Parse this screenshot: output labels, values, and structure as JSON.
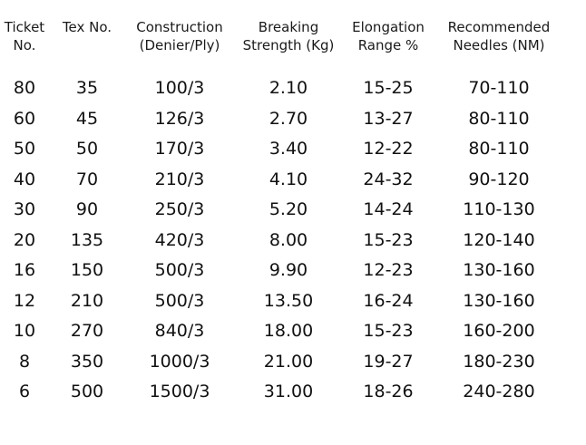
{
  "table": {
    "headers": [
      {
        "line1": "Ticket",
        "line2": "No."
      },
      {
        "line1": "Tex No.",
        "line2": ""
      },
      {
        "line1": "Construction",
        "line2": "(Denier/Ply)"
      },
      {
        "line1": "Breaking",
        "line2": "Strength (Kg)"
      },
      {
        "line1": "Elongation",
        "line2": "Range %"
      },
      {
        "line1": "Recommended",
        "line2": "Needles (NM)"
      }
    ],
    "rows": [
      [
        "80",
        "35",
        "100/3",
        "2.10",
        "15-25",
        "70-110"
      ],
      [
        "60",
        "45",
        "126/3",
        "2.70",
        "13-27",
        "80-110"
      ],
      [
        "50",
        "50",
        "170/3",
        "3.40",
        "12-22",
        "80-110"
      ],
      [
        "40",
        "70",
        "210/3",
        "4.10",
        "24-32",
        "90-120"
      ],
      [
        "30",
        "90",
        "250/3",
        "5.20",
        "14-24",
        "110-130"
      ],
      [
        "20",
        "135",
        "420/3",
        "8.00",
        "15-23",
        "120-140"
      ],
      [
        "16",
        "150",
        "500/3",
        "9.90",
        "12-23",
        "130-160"
      ],
      [
        "12",
        "210",
        "500/3",
        "13.50",
        "16-24",
        "130-160"
      ],
      [
        "10",
        "270",
        "840/3",
        "18.00",
        "15-23",
        "160-200"
      ],
      [
        "8",
        "350",
        "1000/3",
        "21.00",
        "19-27",
        "180-230"
      ],
      [
        "6",
        "500",
        "1500/3",
        "31.00",
        "18-26",
        "240-280"
      ]
    ]
  }
}
